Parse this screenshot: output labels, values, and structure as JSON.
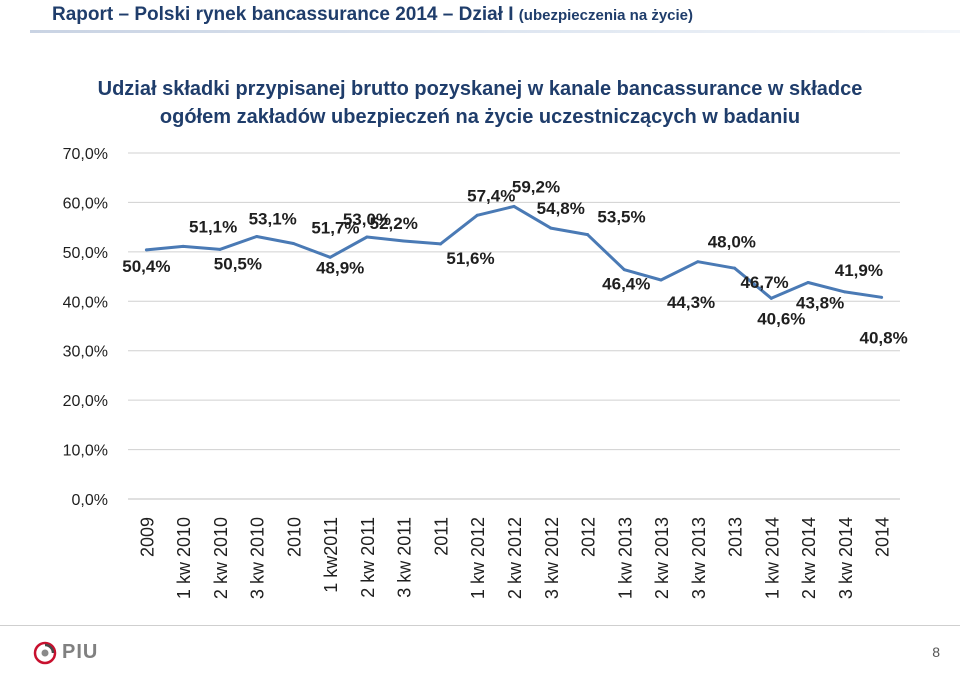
{
  "header": {
    "title": "Raport – Polski rynek bancassurance 2014 – Dział I",
    "subtitle": "(ubezpieczenia na życie)"
  },
  "footer": {
    "logo_text": "PIU",
    "page_number": "8"
  },
  "chart_data": {
    "type": "line",
    "title_line1": "Udział składki przypisanej brutto pozyskanej w kanale bancassurance w składce",
    "title_line2": "ogółem zakładów ubezpieczeń na życie uczestniczących w badaniu",
    "categories": [
      "2009",
      "1 kw 2010",
      "2 kw 2010",
      "3 kw 2010",
      "2010",
      "1 kw2011",
      "2 kw 2011",
      "3 kw 2011",
      "2011",
      "1 kw 2012",
      "2 kw 2012",
      "3 kw 2012",
      "2012",
      "1 kw 2013",
      "2 kw 2013",
      "3 kw 2013",
      "2013",
      "1 kw 2014",
      "2 kw 2014",
      "3 kw 2014",
      "2014"
    ],
    "values": [
      50.4,
      51.1,
      50.5,
      53.1,
      51.7,
      48.9,
      53.0,
      52.2,
      51.6,
      57.4,
      59.2,
      54.8,
      53.5,
      46.4,
      44.3,
      48.0,
      46.7,
      40.6,
      43.8,
      41.9,
      40.8
    ],
    "data_labels": [
      "50,4%",
      "51,1%",
      "50,5%",
      "53,1%",
      "51,7%",
      "48,9%",
      "53,0%",
      "52,2%",
      "51,6%",
      "57,4%",
      "59,2%",
      "54,8%",
      "53,5%",
      "46,4%",
      "44,3%",
      "48,0%",
      "46,7%",
      "40,6%",
      "43,8%",
      "41,9%",
      "40,8%"
    ],
    "ylim": [
      0,
      70
    ],
    "yticks": [
      0,
      10,
      20,
      30,
      40,
      50,
      60,
      70
    ],
    "ytick_labels": [
      "0,0%",
      "10,0%",
      "20,0%",
      "30,0%",
      "40,0%",
      "50,0%",
      "60,0%",
      "70,0%"
    ],
    "grid": true,
    "legend": "none",
    "line_color": "#4a7ab5"
  }
}
